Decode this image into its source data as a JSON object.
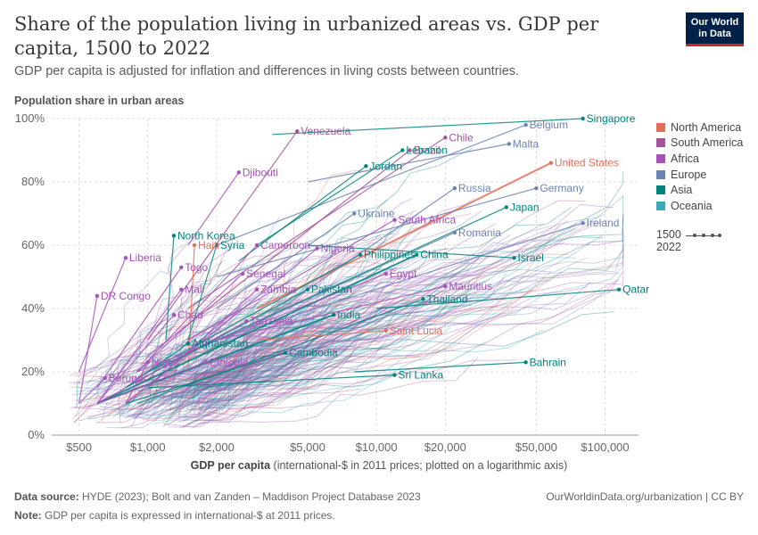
{
  "header": {
    "title": "Share of the population living in urbanized areas vs. GDP per capita, 1500 to 2022",
    "subtitle": "GDP per capita is adjusted for inflation and differences in living costs between countries.",
    "logo_line1": "Our World",
    "logo_line2": "in Data"
  },
  "legend": {
    "regions": [
      {
        "name": "North America",
        "color": "#e56e5a"
      },
      {
        "name": "South America",
        "color": "#a2559c"
      },
      {
        "name": "Africa",
        "color": "#a652ba"
      },
      {
        "name": "Europe",
        "color": "#6d83b4"
      },
      {
        "name": "Asia",
        "color": "#00847e"
      },
      {
        "name": "Oceania",
        "color": "#38aaba"
      }
    ],
    "time_start": "1500",
    "time_end": "2022"
  },
  "footer": {
    "source_label": "Data source:",
    "source_text": "HYDE (2023); Bolt and van Zanden – Maddison Project Database 2023",
    "note_label": "Note:",
    "note_text": "GDP per capita is expressed in international-$ at 2011 prices.",
    "url": "OurWorldinData.org/urbanization | CC BY"
  },
  "chart_data": {
    "type": "scatter",
    "title": "Share of the population living in urbanized areas vs. GDP per capita, 1500 to 2022",
    "xlabel": "GDP per capita",
    "xlabel_note": "(international-$ in 2011 prices; plotted on a logarithmic axis)",
    "ylabel": "Population share in urban areas",
    "x_scale": "log",
    "xlim": [
      380,
      140000
    ],
    "ylim": [
      0,
      100
    ],
    "x_ticks": [
      {
        "value": 500,
        "label": "$500"
      },
      {
        "value": 1000,
        "label": "$1,000"
      },
      {
        "value": 2000,
        "label": "$2,000"
      },
      {
        "value": 5000,
        "label": "$5,000"
      },
      {
        "value": 10000,
        "label": "$10,000"
      },
      {
        "value": 20000,
        "label": "$20,000"
      },
      {
        "value": 50000,
        "label": "$50,000"
      },
      {
        "value": 100000,
        "label": "$100,000"
      }
    ],
    "y_ticks": [
      {
        "value": 0,
        "label": "0%"
      },
      {
        "value": 20,
        "label": "20%"
      },
      {
        "value": 40,
        "label": "40%"
      },
      {
        "value": 60,
        "label": "60%"
      },
      {
        "value": 80,
        "label": "80%"
      },
      {
        "value": 100,
        "label": "100%"
      }
    ],
    "grid": true,
    "legend_position": "right",
    "series": [
      {
        "name": "Singapore",
        "region": "Asia",
        "values": [
          [
            3500,
            95
          ],
          [
            80000,
            100
          ]
        ]
      },
      {
        "name": "Belgium",
        "region": "Europe",
        "values": [
          [
            2000,
            60
          ],
          [
            45000,
            98
          ]
        ]
      },
      {
        "name": "Venezuela",
        "region": "South America",
        "values": [
          [
            1000,
            30
          ],
          [
            4500,
            96
          ]
        ]
      },
      {
        "name": "Chile",
        "region": "South America",
        "values": [
          [
            1500,
            40
          ],
          [
            20000,
            94
          ]
        ]
      },
      {
        "name": "Brazil",
        "region": "South America",
        "values": [
          [
            1000,
            25
          ],
          [
            14000,
            90
          ]
        ]
      },
      {
        "name": "Lebanon",
        "region": "Asia",
        "values": [
          [
            3000,
            60
          ],
          [
            13000,
            90
          ]
        ]
      },
      {
        "name": "Malta",
        "region": "Europe",
        "values": [
          [
            5000,
            80
          ],
          [
            38000,
            92
          ]
        ]
      },
      {
        "name": "United States",
        "region": "North America",
        "values": [
          [
            3000,
            40
          ],
          [
            58000,
            86
          ]
        ]
      },
      {
        "name": "Djibouti",
        "region": "Africa",
        "values": [
          [
            1500,
            60
          ],
          [
            2500,
            83
          ]
        ]
      },
      {
        "name": "Jordan",
        "region": "Asia",
        "values": [
          [
            2500,
            55
          ],
          [
            9000,
            85
          ]
        ]
      },
      {
        "name": "Russia",
        "region": "Europe",
        "values": [
          [
            1500,
            20
          ],
          [
            22000,
            78
          ]
        ]
      },
      {
        "name": "Germany",
        "region": "Europe",
        "values": [
          [
            2000,
            50
          ],
          [
            50000,
            78
          ]
        ]
      },
      {
        "name": "Ukraine",
        "region": "Europe",
        "values": [
          [
            2000,
            40
          ],
          [
            8000,
            70
          ]
        ]
      },
      {
        "name": "Japan",
        "region": "Asia",
        "values": [
          [
            1000,
            20
          ],
          [
            37000,
            72
          ]
        ]
      },
      {
        "name": "North Korea",
        "region": "Asia",
        "values": [
          [
            1200,
            30
          ],
          [
            1300,
            63
          ]
        ]
      },
      {
        "name": "Cameroon",
        "region": "Africa",
        "values": [
          [
            900,
            20
          ],
          [
            3000,
            60
          ]
        ]
      },
      {
        "name": "South Africa",
        "region": "Africa",
        "values": [
          [
            1500,
            30
          ],
          [
            12000,
            68
          ]
        ]
      },
      {
        "name": "Ireland",
        "region": "Europe",
        "values": [
          [
            2000,
            30
          ],
          [
            80000,
            67
          ]
        ]
      },
      {
        "name": "Haiti",
        "region": "North America",
        "values": [
          [
            1500,
            20
          ],
          [
            1600,
            60
          ]
        ]
      },
      {
        "name": "Syria",
        "region": "Asia",
        "values": [
          [
            1500,
            30
          ],
          [
            2000,
            60
          ]
        ]
      },
      {
        "name": "Romania",
        "region": "Europe",
        "values": [
          [
            1000,
            20
          ],
          [
            22000,
            64
          ]
        ]
      },
      {
        "name": "Nigeria",
        "region": "Africa",
        "values": [
          [
            800,
            10
          ],
          [
            5500,
            59
          ]
        ]
      },
      {
        "name": "Philippines",
        "region": "Asia",
        "values": [
          [
            1000,
            20
          ],
          [
            8500,
            57
          ]
        ]
      },
      {
        "name": "China",
        "region": "Asia",
        "values": [
          [
            600,
            10
          ],
          [
            15000,
            57
          ]
        ]
      },
      {
        "name": "Israel",
        "region": "Asia",
        "values": [
          [
            5000,
            60
          ],
          [
            40000,
            56
          ]
        ]
      },
      {
        "name": "Liberia",
        "region": "Africa",
        "values": [
          [
            500,
            20
          ],
          [
            800,
            56
          ]
        ]
      },
      {
        "name": "Togo",
        "region": "Africa",
        "values": [
          [
            600,
            15
          ],
          [
            1400,
            53
          ]
        ]
      },
      {
        "name": "Senegal",
        "region": "Africa",
        "values": [
          [
            900,
            20
          ],
          [
            2600,
            51
          ]
        ]
      },
      {
        "name": "Egypt",
        "region": "Africa",
        "values": [
          [
            900,
            20
          ],
          [
            11000,
            51
          ]
        ]
      },
      {
        "name": "Mauritius",
        "region": "Africa",
        "values": [
          [
            2000,
            30
          ],
          [
            20000,
            47
          ]
        ]
      },
      {
        "name": "DR Congo",
        "region": "Africa",
        "values": [
          [
            500,
            10
          ],
          [
            600,
            44
          ]
        ]
      },
      {
        "name": "Mali",
        "region": "Africa",
        "values": [
          [
            600,
            10
          ],
          [
            1400,
            46
          ]
        ]
      },
      {
        "name": "Zambia",
        "region": "Africa",
        "values": [
          [
            1000,
            15
          ],
          [
            3000,
            46
          ]
        ]
      },
      {
        "name": "Pakistan",
        "region": "Asia",
        "values": [
          [
            800,
            15
          ],
          [
            5000,
            46
          ]
        ]
      },
      {
        "name": "Qatar",
        "region": "Asia",
        "values": [
          [
            10000,
            40
          ],
          [
            115000,
            46
          ]
        ]
      },
      {
        "name": "Thailand",
        "region": "Asia",
        "values": [
          [
            900,
            10
          ],
          [
            16000,
            43
          ]
        ]
      },
      {
        "name": "India",
        "region": "Asia",
        "values": [
          [
            600,
            10
          ],
          [
            6500,
            38
          ]
        ]
      },
      {
        "name": "Chad",
        "region": "Africa",
        "values": [
          [
            600,
            10
          ],
          [
            1300,
            38
          ]
        ]
      },
      {
        "name": "Tanzania",
        "region": "Africa",
        "values": [
          [
            600,
            10
          ],
          [
            2700,
            36
          ]
        ]
      },
      {
        "name": "Saint Lucia",
        "region": "North America",
        "values": [
          [
            3000,
            30
          ],
          [
            11000,
            33
          ]
        ]
      },
      {
        "name": "Afghanistan",
        "region": "Asia",
        "values": [
          [
            800,
            15
          ],
          [
            1500,
            29
          ]
        ]
      },
      {
        "name": "Cambodia",
        "region": "Asia",
        "values": [
          [
            800,
            10
          ],
          [
            4000,
            26
          ]
        ]
      },
      {
        "name": "Niger",
        "region": "Africa",
        "values": [
          [
            800,
            10
          ],
          [
            1000,
            23
          ]
        ]
      },
      {
        "name": "Ethiopia",
        "region": "Africa",
        "values": [
          [
            600,
            10
          ],
          [
            1800,
            23
          ]
        ]
      },
      {
        "name": "Bahrain",
        "region": "Asia",
        "values": [
          [
            8000,
            20
          ],
          [
            45000,
            23
          ]
        ]
      },
      {
        "name": "Sri Lanka",
        "region": "Asia",
        "values": [
          [
            1000,
            15
          ],
          [
            12000,
            19
          ]
        ]
      },
      {
        "name": "Burundi",
        "region": "Africa",
        "values": [
          [
            500,
            10
          ],
          [
            650,
            18
          ]
        ]
      }
    ]
  }
}
